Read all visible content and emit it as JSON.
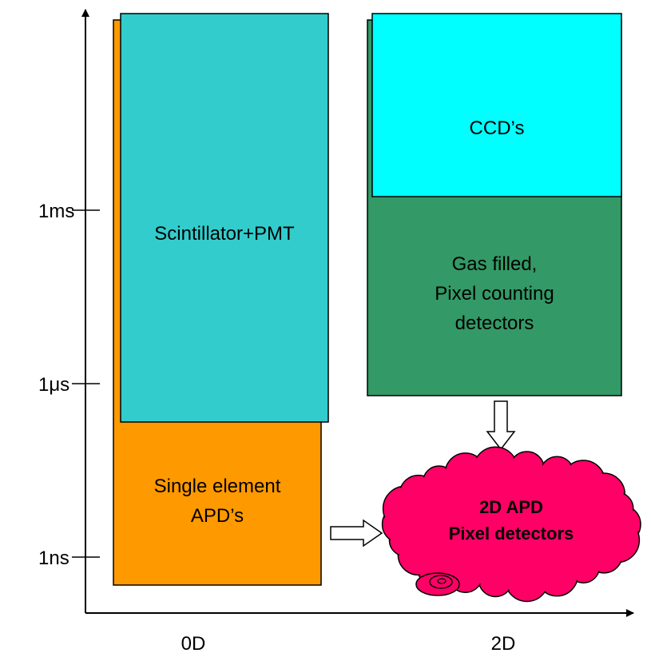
{
  "axes": {
    "y_ticks": [
      "1ms",
      "1μs",
      "1ns"
    ],
    "x_labels": [
      "0D",
      "2D"
    ]
  },
  "boxes": {
    "scintillator": "Scintillator+PMT",
    "ccd": "CCD’s",
    "gas": [
      "Gas filled,",
      "Pixel counting",
      "detectors"
    ],
    "apd": [
      "Single element",
      "APD’s"
    ]
  },
  "cloud": [
    "2D APD",
    "Pixel detectors"
  ]
}
